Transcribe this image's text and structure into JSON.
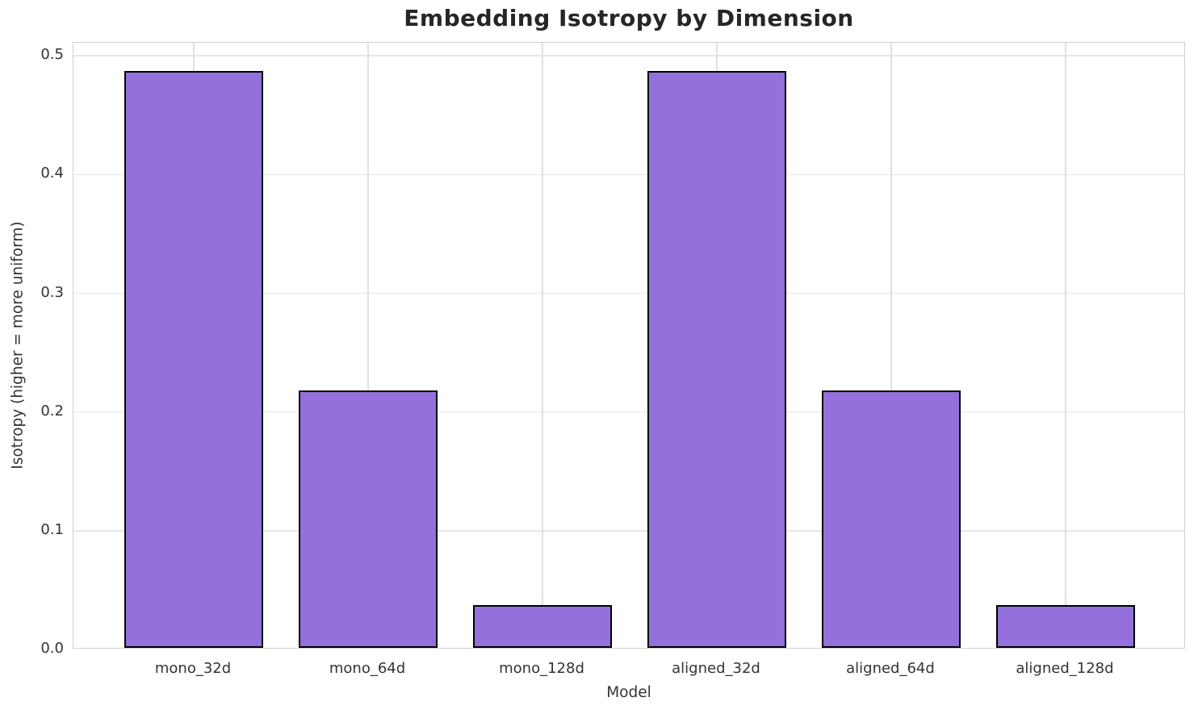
{
  "chart_data": {
    "type": "bar",
    "title": "Embedding Isotropy by Dimension",
    "xlabel": "Model",
    "ylabel": "Isotropy (higher = more uniform)",
    "categories": [
      "mono_32d",
      "mono_64d",
      "mono_128d",
      "aligned_32d",
      "aligned_64d",
      "aligned_128d"
    ],
    "values": [
      0.486,
      0.217,
      0.036,
      0.486,
      0.217,
      0.036
    ],
    "ylim": [
      0,
      0.511
    ],
    "yticks": [
      "0.0",
      "0.1",
      "0.2",
      "0.3",
      "0.4",
      "0.5"
    ],
    "ytick_values": [
      0,
      0.1,
      0.2,
      0.3,
      0.4,
      0.5
    ],
    "xlim": [
      -0.69,
      5.69
    ],
    "bar_width": 0.8,
    "grid": true,
    "legend": false,
    "bar_color": "#9370DB",
    "bar_edge_color": "#000000",
    "grid_color_h": "#e6e6e6",
    "grid_color_v": "#e0e0e0",
    "spine_color": "#cfcfcf",
    "text_color": "#333333",
    "title_color": "#262626"
  }
}
